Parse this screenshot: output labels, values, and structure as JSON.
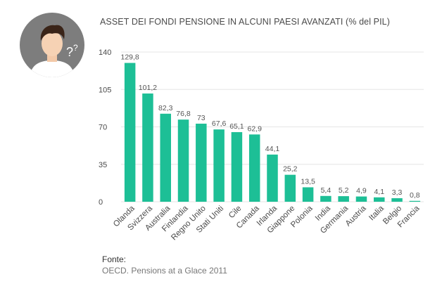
{
  "header": {
    "title": "ASSET DEI FONDI PENSIONE IN ALCUNI PAESI AVANZATI (% del PIL)"
  },
  "footer": {
    "source_label": "Fonte:",
    "source_text": "OECD. Pensions at a Glace 2011"
  },
  "colors": {
    "bar": "#1dbf96",
    "grid": "#e6e6e6",
    "avatar_bg": "#7d7d7d"
  },
  "chart_data": {
    "type": "bar",
    "title": "ASSET DEI FONDI PENSIONE IN ALCUNI PAESI AVANZATI (% del PIL)",
    "categories": [
      "Olanda",
      "Svizzera",
      "Australia",
      "Finlandia",
      "Regno Unito",
      "Stati Uniti",
      "Cile",
      "Canada",
      "Irlanda",
      "Giappone",
      "Polonia",
      "India",
      "Germania",
      "Austria",
      "Italia",
      "Belgio",
      "Francia"
    ],
    "values": [
      129.8,
      101.2,
      82.3,
      76.8,
      73,
      67.6,
      65.1,
      62.9,
      44.1,
      25.2,
      13.5,
      5.4,
      5.2,
      4.9,
      4.1,
      3.3,
      0.8
    ],
    "value_labels": [
      "129,8",
      "101,2",
      "82,3",
      "76,8",
      "73",
      "67,6",
      "65,1",
      "62,9",
      "44,1",
      "25,2",
      "13,5",
      "5,4",
      "5,2",
      "4,9",
      "4,1",
      "3,3",
      "0,8"
    ],
    "yticks": [
      0,
      35,
      70,
      105,
      140
    ],
    "ylim": [
      0,
      140
    ],
    "grid": true,
    "xlabel": "",
    "ylabel": ""
  }
}
